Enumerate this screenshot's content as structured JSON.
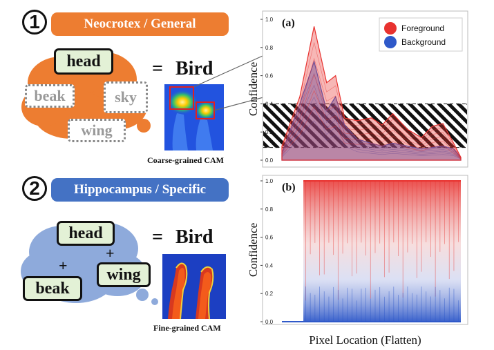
{
  "section1": {
    "number": "1",
    "title": "Neocrotex / General",
    "tags": {
      "head": "head",
      "beak": "beak",
      "sky": "sky",
      "wing": "wing"
    },
    "equals": "=",
    "result": "Bird",
    "caption": "Coarse-grained CAM",
    "color": "#ed7d31"
  },
  "section2": {
    "number": "2",
    "title": "Hippocampus / Specific",
    "tags": {
      "head": "head",
      "beak": "beak",
      "wing": "wing"
    },
    "plus": "+",
    "equals": "=",
    "result": "Bird",
    "caption": "Fine-grained CAM",
    "color": "#4472c4"
  },
  "chart_data": [
    {
      "type": "area",
      "panel_label": "(a)",
      "ylabel": "Confidence",
      "xlabel": "",
      "ylim": [
        0,
        1.0
      ],
      "yticks": [
        "0.0",
        "0.2",
        "0.4",
        "0.6",
        "0.8",
        "1.0"
      ],
      "legend": [
        "Foreground",
        "Background"
      ],
      "legend_position": "top-right",
      "hatched_band": [
        0.09,
        0.4
      ],
      "dashed_lines": [
        0.09,
        0.4
      ],
      "series": [
        {
          "name": "Foreground",
          "color": "#e8322f",
          "x": [
            0,
            0.1,
            0.18,
            0.25,
            0.3,
            0.35,
            0.42,
            0.5,
            0.56,
            0.62,
            0.7,
            0.78,
            0.84,
            0.9,
            0.96,
            1.0
          ],
          "upper": [
            0.1,
            0.45,
            0.95,
            0.55,
            0.6,
            0.3,
            0.28,
            0.3,
            0.25,
            0.33,
            0.22,
            0.16,
            0.24,
            0.26,
            0.12,
            0.02
          ]
        },
        {
          "name": "Background",
          "color": "#2f59c9",
          "x": [
            0,
            0.1,
            0.18,
            0.25,
            0.3,
            0.35,
            0.42,
            0.5,
            0.56,
            0.62,
            0.7,
            0.78,
            0.84,
            0.9,
            0.96,
            1.0
          ],
          "upper": [
            0.05,
            0.4,
            0.7,
            0.35,
            0.45,
            0.25,
            0.15,
            0.12,
            0.1,
            0.12,
            0.1,
            0.08,
            0.09,
            0.1,
            0.08,
            0.02
          ]
        }
      ]
    },
    {
      "type": "area",
      "panel_label": "(b)",
      "ylabel": "Confidence",
      "xlabel": "Pixel Location (Flatten)",
      "ylim": [
        0,
        1.0
      ],
      "yticks": [
        "0.0",
        "0.2",
        "0.4",
        "0.6",
        "0.8",
        "1.0"
      ],
      "series": [
        {
          "name": "Foreground",
          "color": "#e8322f",
          "x": [
            0.12,
            1.0
          ],
          "upper": [
            1.0,
            1.0
          ]
        },
        {
          "name": "Background",
          "color": "#2f59c9",
          "x": [
            0.12,
            1.0
          ],
          "upper": [
            0.25,
            0.25
          ]
        }
      ]
    }
  ]
}
